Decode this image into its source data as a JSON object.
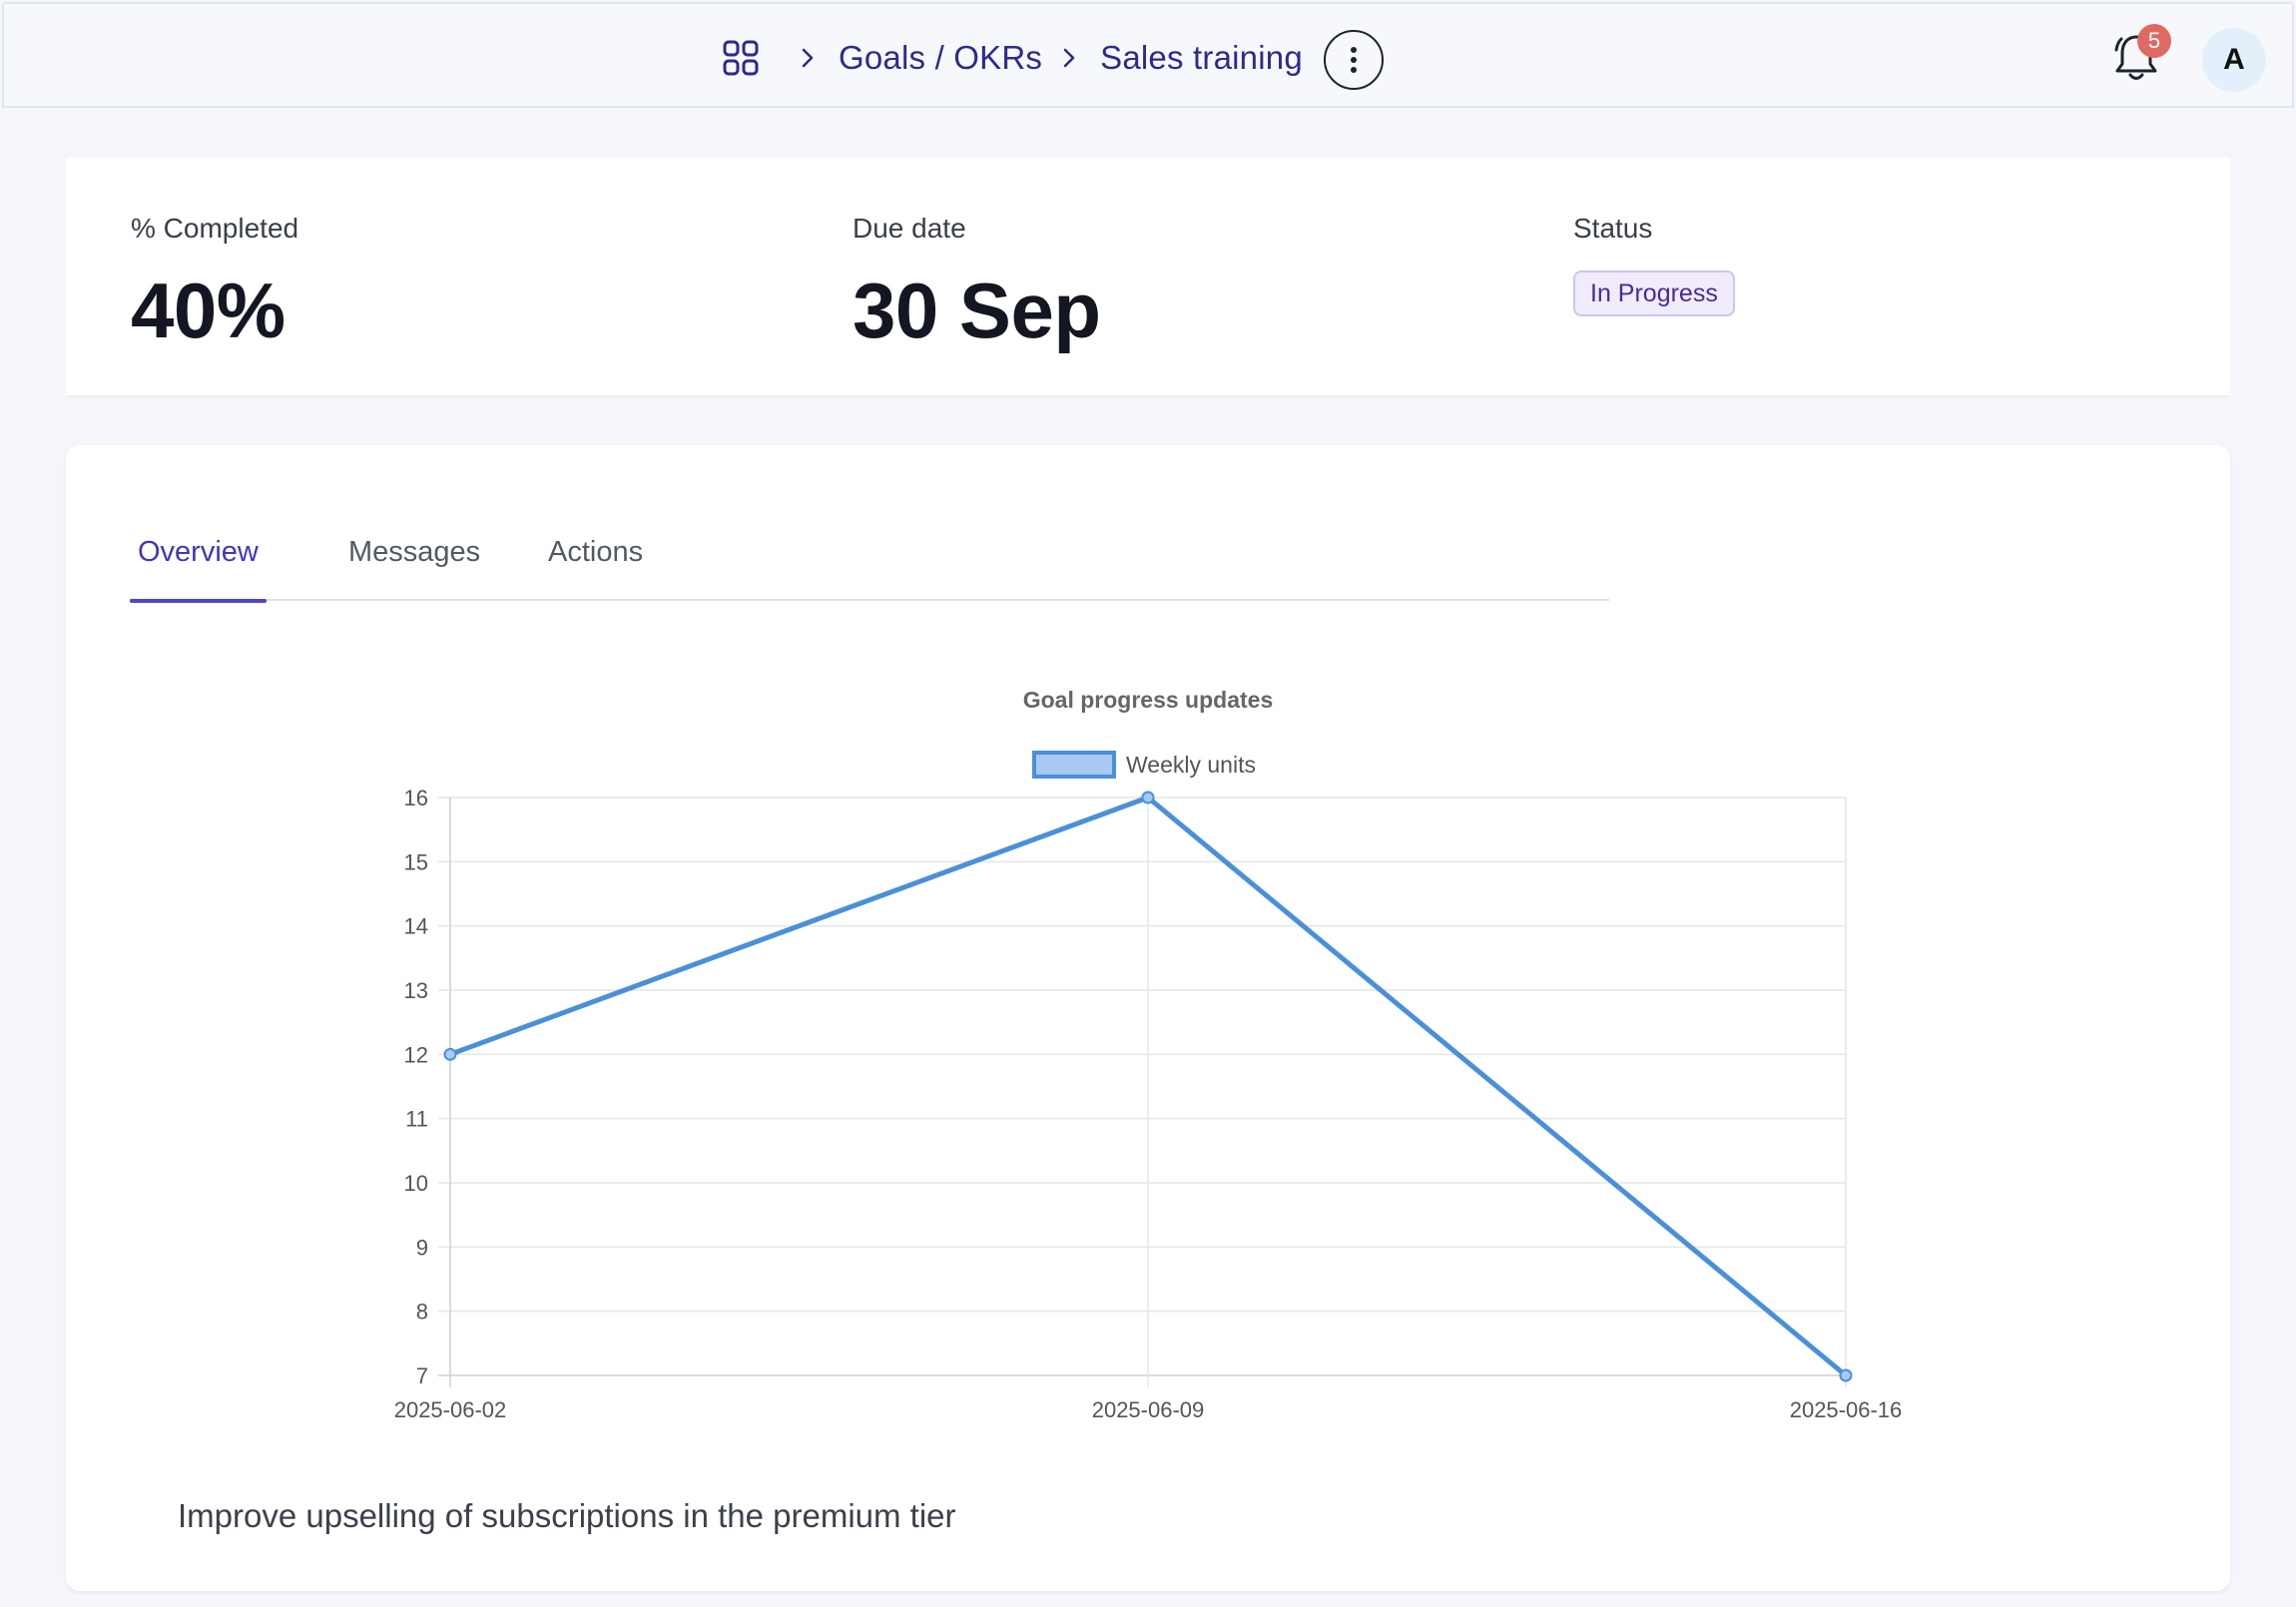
{
  "breadcrumb": {
    "items": [
      "Goals / OKRs",
      "Sales training"
    ]
  },
  "notifications": {
    "count": "5"
  },
  "user": {
    "avatar_initial": "A"
  },
  "stats": {
    "completed": {
      "label": "% Completed",
      "value": "40%"
    },
    "due": {
      "label": "Due date",
      "value": "30 Sep"
    },
    "status": {
      "label": "Status",
      "value": "In Progress"
    }
  },
  "tabs": [
    {
      "label": "Overview",
      "active": true
    },
    {
      "label": "Messages",
      "active": false
    },
    {
      "label": "Actions",
      "active": false
    }
  ],
  "chart_data": {
    "type": "line",
    "title": "Goal progress updates",
    "categories": [
      "2025-06-02",
      "2025-06-09",
      "2025-06-16"
    ],
    "series": [
      {
        "name": "Weekly units",
        "values": [
          12,
          16,
          7
        ],
        "color": "#4a90d9"
      }
    ],
    "ylim": [
      7,
      16
    ],
    "yticks": [
      7,
      8,
      9,
      10,
      11,
      12,
      13,
      14,
      15,
      16
    ],
    "grid": true,
    "legend": "top-center"
  },
  "description": "Improve upselling of subscriptions in the premium tier",
  "colors": {
    "accent": "#4f46c8",
    "breadcrumb": "#2e2a8c",
    "badge": "#e06a63",
    "line": "#4a90d9"
  }
}
